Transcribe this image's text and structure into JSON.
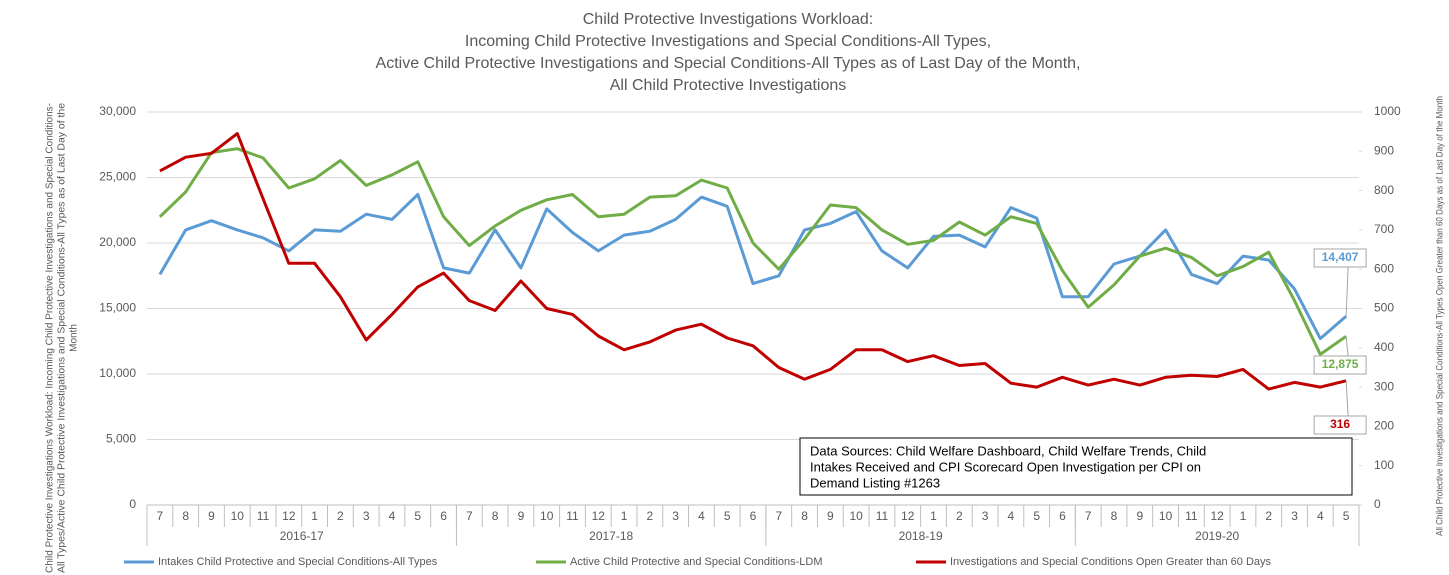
{
  "chart_data": {
    "type": "line",
    "title": [
      "Child Protective Investigations Workload:",
      "Incoming Child Protective Investigations and Special Conditions-All Types,",
      "Active Child Protective Investigations and Special Conditions-All Types as of Last Day of the Month,",
      "All Child Protective Investigations"
    ],
    "ylabel": [
      "Child Protective Investigations Workload: Incoming Child Protective Investigations and Special Conditions-",
      "All Types/Active Child Protective Investigations and Special Conditions-All Types as of Last Day of the",
      "Month"
    ],
    "y2label": "All Child Protective Investigations and Special Conditions-All Types Open Greater than 60 Days as of Last Day of the Month",
    "category_groups": [
      {
        "label": "2016-17",
        "categories": [
          "7",
          "8",
          "9",
          "10",
          "11",
          "12",
          "1",
          "2",
          "3",
          "4",
          "5",
          "6"
        ]
      },
      {
        "label": "2017-18",
        "categories": [
          "7",
          "8",
          "9",
          "10",
          "11",
          "12",
          "1",
          "2",
          "3",
          "4",
          "5",
          "6"
        ]
      },
      {
        "label": "2018-19",
        "categories": [
          "7",
          "8",
          "9",
          "10",
          "11",
          "12",
          "1",
          "2",
          "3",
          "4",
          "5",
          "6"
        ]
      },
      {
        "label": "2019-20",
        "categories": [
          "7",
          "8",
          "9",
          "10",
          "11",
          "12",
          "1",
          "2",
          "3",
          "4",
          "5"
        ]
      }
    ],
    "series": [
      {
        "name": "Intakes Child Protective and Special Conditions-All Types",
        "color": "#5b9bd5",
        "axis": "y",
        "values": [
          17600,
          21000,
          21700,
          21000,
          20400,
          19400,
          21000,
          20900,
          22200,
          21800,
          23700,
          18100,
          17700,
          21000,
          18100,
          22600,
          20800,
          19400,
          20600,
          20900,
          21800,
          23500,
          22800,
          16900,
          17500,
          21000,
          21500,
          22400,
          19400,
          18100,
          20500,
          20600,
          19700,
          22700,
          21900,
          15900,
          15900,
          18400,
          19000,
          21000,
          17600,
          16900,
          19000,
          18700,
          16500,
          12700,
          14407
        ],
        "value_labels": [
          null,
          null,
          null,
          null,
          null,
          null,
          null,
          null,
          null,
          null,
          null,
          null,
          null,
          null,
          null,
          null,
          null,
          null,
          null,
          null,
          null,
          null,
          null,
          null,
          null,
          null,
          null,
          null,
          null,
          null,
          null,
          null,
          null,
          null,
          null,
          null,
          null,
          null,
          null,
          null,
          null,
          null,
          null,
          null,
          null,
          null,
          "14,407"
        ]
      },
      {
        "name": "Active Child Protective and Special Conditions-LDM",
        "color": "#70ad47",
        "axis": "y",
        "values": [
          22000,
          23900,
          26900,
          27200,
          26500,
          24200,
          24900,
          26300,
          24400,
          25200,
          26200,
          22000,
          19800,
          21300,
          22500,
          23300,
          23700,
          22000,
          22200,
          23500,
          23600,
          24800,
          24200,
          20000,
          18000,
          20300,
          22900,
          22700,
          21000,
          19900,
          20200,
          21600,
          20600,
          22000,
          21500,
          17900,
          15100,
          16800,
          19000,
          19600,
          18900,
          17500,
          18200,
          19300,
          15600,
          11500,
          12875
        ],
        "value_labels": [
          null,
          null,
          null,
          null,
          null,
          null,
          null,
          null,
          null,
          null,
          null,
          null,
          null,
          null,
          null,
          null,
          null,
          null,
          null,
          null,
          null,
          null,
          null,
          null,
          null,
          null,
          null,
          null,
          null,
          null,
          null,
          null,
          null,
          null,
          null,
          null,
          null,
          null,
          null,
          null,
          null,
          null,
          null,
          null,
          null,
          null,
          "12,875"
        ]
      },
      {
        "name": "Investigations and Special Conditions Open Greater than 60 Days",
        "color": "#c00000",
        "axis": "y2",
        "values": [
          850,
          885,
          895,
          945,
          780,
          615,
          615,
          530,
          420,
          485,
          555,
          590,
          520,
          495,
          570,
          500,
          485,
          430,
          395,
          415,
          445,
          460,
          425,
          405,
          350,
          320,
          345,
          395,
          395,
          365,
          380,
          355,
          360,
          310,
          300,
          325,
          305,
          320,
          305,
          325,
          330,
          327,
          345,
          295,
          312,
          300,
          316
        ],
        "value_labels": [
          null,
          null,
          null,
          null,
          null,
          null,
          null,
          null,
          null,
          null,
          null,
          null,
          null,
          null,
          null,
          null,
          null,
          null,
          null,
          null,
          null,
          null,
          null,
          null,
          null,
          null,
          null,
          null,
          null,
          null,
          null,
          null,
          null,
          null,
          null,
          null,
          null,
          null,
          null,
          null,
          null,
          null,
          null,
          null,
          null,
          null,
          "316"
        ]
      }
    ],
    "ylim": [
      0,
      30000
    ],
    "yticks": [
      0,
      {
        "value": 5000,
        "label": "5,000"
      },
      {
        "value": 10000,
        "label": "10,000"
      },
      {
        "value": 15000,
        "label": "15,000"
      },
      {
        "value": 20000,
        "label": "20,000"
      },
      {
        "value": 25000,
        "label": "25,000"
      },
      {
        "value": 30000,
        "label": "30,000"
      }
    ],
    "y2lim": [
      0,
      1000
    ],
    "y2ticks": [
      0,
      100,
      200,
      300,
      400,
      500,
      600,
      700,
      800,
      900,
      1000
    ],
    "grid": true,
    "legend": "bottom",
    "annotation": [
      "Data Sources: Child Welfare Dashboard, Child Welfare Trends, Child",
      "Intakes Received and CPI Scorecard Open Investigation per CPI on",
      "Demand Listing #1263"
    ]
  }
}
